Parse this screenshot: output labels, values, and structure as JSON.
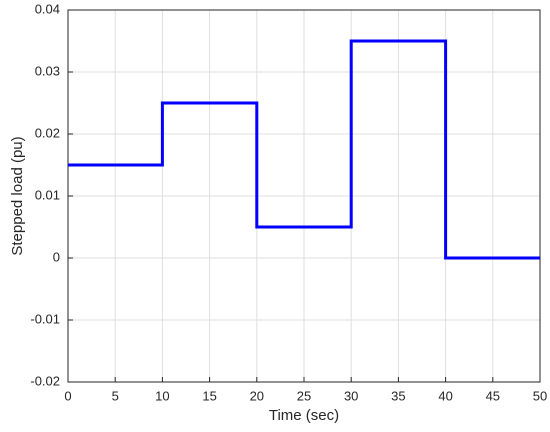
{
  "chart_data": {
    "type": "line",
    "xlabel": "Time (sec)",
    "ylabel": "Stepped load  (pu)",
    "x": [
      0,
      10,
      10,
      20,
      20,
      30,
      30,
      40,
      40,
      50
    ],
    "series": [
      {
        "color": "#0000ff",
        "values": [
          0.015,
          0.015,
          0.025,
          0.025,
          0.005,
          0.005,
          0.035,
          0.035,
          0,
          0
        ]
      }
    ],
    "xlim": [
      0,
      50
    ],
    "xticks": [
      0,
      5,
      10,
      15,
      20,
      25,
      30,
      35,
      40,
      45,
      50
    ],
    "ylim": [
      -0.02,
      0.04
    ],
    "yticks": [
      -0.02,
      -0.01,
      0,
      0.01,
      0.02,
      0.03,
      0.04
    ],
    "grid": true
  }
}
